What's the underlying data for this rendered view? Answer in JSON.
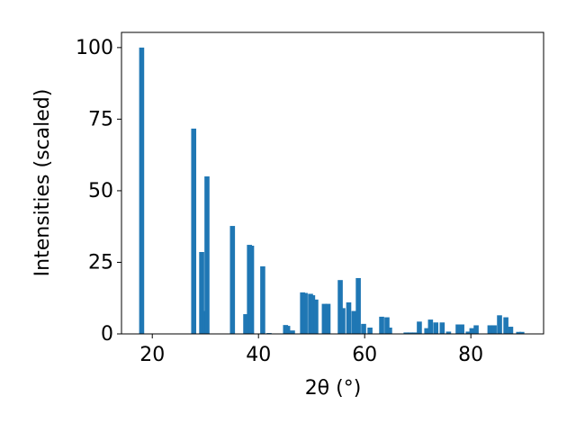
{
  "chart_data": {
    "type": "bar",
    "xlabel": "2θ (°)",
    "ylabel": "Intensities (scaled)",
    "x": [
      18.0,
      27.8,
      29.3,
      29.8,
      30.3,
      35.1,
      37.6,
      38.3,
      38.7,
      40.8,
      42.0,
      45.1,
      45.5,
      46.4,
      48.3,
      48.8,
      49.8,
      50.2,
      50.8,
      52.4,
      53.1,
      55.4,
      55.9,
      57.0,
      58.0,
      58.8,
      59.8,
      61.0,
      63.2,
      64.2,
      64.7,
      67.8,
      68.6,
      69.4,
      70.3,
      71.7,
      72.4,
      73.4,
      74.6,
      75.8,
      77.6,
      78.3,
      79.5,
      80.2,
      81.0,
      83.6,
      84.4,
      85.4,
      86.6,
      87.5,
      89.0,
      89.6
    ],
    "values": [
      100,
      71.7,
      28.6,
      8,
      55,
      37.7,
      6.9,
      31.1,
      30.8,
      23.6,
      0.3,
      3.1,
      2.8,
      1.2,
      14.5,
      14.3,
      14,
      13.5,
      12,
      10.5,
      10.5,
      18.8,
      9,
      11,
      8,
      19.5,
      3.5,
      2.2,
      6,
      5.8,
      2.2,
      0.5,
      0.5,
      0.5,
      4.3,
      2,
      5,
      4,
      4,
      0.8,
      3.3,
      3.3,
      0.8,
      2,
      3,
      3,
      3,
      6.5,
      5.8,
      2.5,
      0.7,
      0.7
    ],
    "color": "#1f77b4",
    "xlim": [
      14.2,
      93.7
    ],
    "xticks": [
      20,
      40,
      60,
      80
    ],
    "ylim": [
      0,
      105.3
    ],
    "yticks": [
      0,
      25,
      50,
      75,
      100
    ]
  }
}
